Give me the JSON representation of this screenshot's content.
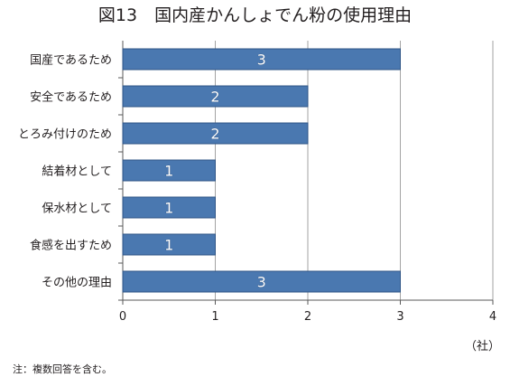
{
  "chart_data": {
    "type": "bar",
    "orientation": "horizontal",
    "title": "図13　国内産かんしょでん粉の使用理由",
    "categories": [
      "国産であるため",
      "安全であるため",
      "とろみ付けのため",
      "結着材として",
      "保水材として",
      "食感を出すため",
      "その他の理由"
    ],
    "values": [
      3,
      2,
      2,
      1,
      1,
      1,
      3
    ],
    "xlim": [
      0,
      4
    ],
    "x_ticks": [
      0,
      1,
      2,
      3,
      4
    ],
    "unit": "（社）",
    "grid": true,
    "bar_color": "#4a78b0",
    "bar_edge_color": "#2f5586",
    "label_color": "#ffffff",
    "footnote": "注：複数回答を含む。"
  }
}
